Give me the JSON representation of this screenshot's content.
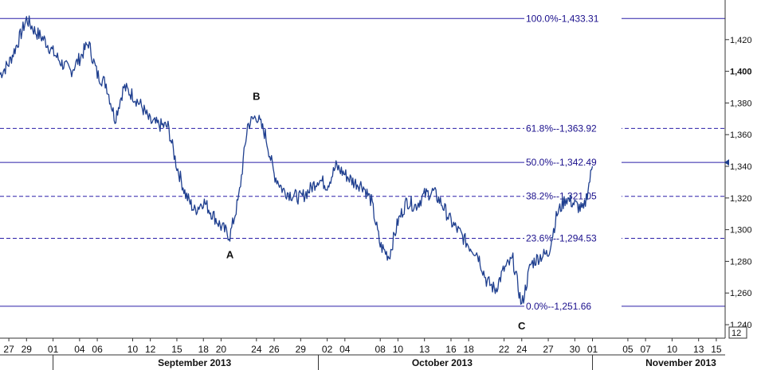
{
  "chart_data": {
    "type": "line",
    "title": "",
    "xlabel": "",
    "ylabel": "",
    "ylim": [
      1235,
      1441
    ],
    "y_ticks": [
      1240,
      1260,
      1280,
      1300,
      1320,
      1340,
      1360,
      1380,
      1400,
      1420
    ],
    "y_tick_labels": [
      "1,240",
      "1,260",
      "1,280",
      "1,300",
      "1,320",
      "1,340",
      "1,360",
      "1,380",
      "1,400",
      "1,420"
    ],
    "y_bold_tick": 1400,
    "x_start": "2013-08-26",
    "x_end": "2013-11-16",
    "x_ticks": [
      {
        "date": "2013-08-27",
        "label": "27"
      },
      {
        "date": "2013-08-29",
        "label": "29"
      },
      {
        "date": "2013-09-01",
        "label": "01"
      },
      {
        "date": "2013-09-04",
        "label": "04"
      },
      {
        "date": "2013-09-06",
        "label": "06"
      },
      {
        "date": "2013-09-10",
        "label": "10"
      },
      {
        "date": "2013-09-12",
        "label": "12"
      },
      {
        "date": "2013-09-15",
        "label": "15"
      },
      {
        "date": "2013-09-18",
        "label": "18"
      },
      {
        "date": "2013-09-20",
        "label": "20"
      },
      {
        "date": "2013-09-24",
        "label": "24"
      },
      {
        "date": "2013-09-26",
        "label": "26"
      },
      {
        "date": "2013-09-29",
        "label": "29"
      },
      {
        "date": "2013-10-02",
        "label": "02"
      },
      {
        "date": "2013-10-04",
        "label": "04"
      },
      {
        "date": "2013-10-08",
        "label": "08"
      },
      {
        "date": "2013-10-10",
        "label": "10"
      },
      {
        "date": "2013-10-13",
        "label": "13"
      },
      {
        "date": "2013-10-16",
        "label": "16"
      },
      {
        "date": "2013-10-18",
        "label": "18"
      },
      {
        "date": "2013-10-22",
        "label": "22"
      },
      {
        "date": "2013-10-24",
        "label": "24"
      },
      {
        "date": "2013-10-27",
        "label": "27"
      },
      {
        "date": "2013-10-30",
        "label": "30"
      },
      {
        "date": "2013-11-01",
        "label": "01"
      },
      {
        "date": "2013-11-05",
        "label": "05"
      },
      {
        "date": "2013-11-07",
        "label": "07"
      },
      {
        "date": "2013-11-10",
        "label": "10"
      },
      {
        "date": "2013-11-13",
        "label": "13"
      },
      {
        "date": "2013-11-15",
        "label": "15"
      }
    ],
    "month_labels": [
      {
        "label": "September 2013",
        "date": "2013-09-17"
      },
      {
        "label": "October 2013",
        "date": "2013-10-15"
      },
      {
        "label": "November 2013",
        "date": "2013-11-11"
      }
    ],
    "month_separators": [
      "2013-09-01",
      "2013-10-01",
      "2013-11-01"
    ],
    "series": [
      {
        "color": "#1f3f8f",
        "points": [
          [
            "2013-08-26",
            1398
          ],
          [
            "2013-08-27",
            1405
          ],
          [
            "2013-08-28",
            1418
          ],
          [
            "2013-08-29",
            1433
          ],
          [
            "2013-08-30",
            1425
          ],
          [
            "2013-08-31",
            1420
          ],
          [
            "2013-09-01",
            1412
          ],
          [
            "2013-09-02",
            1405
          ],
          [
            "2013-09-03",
            1400
          ],
          [
            "2013-09-04",
            1408
          ],
          [
            "2013-09-05",
            1418
          ],
          [
            "2013-09-06",
            1398
          ],
          [
            "2013-09-07",
            1392
          ],
          [
            "2013-09-08",
            1370
          ],
          [
            "2013-09-09",
            1390
          ],
          [
            "2013-09-10",
            1385
          ],
          [
            "2013-09-11",
            1378
          ],
          [
            "2013-09-12",
            1368
          ],
          [
            "2013-09-13",
            1366
          ],
          [
            "2013-09-14",
            1365
          ],
          [
            "2013-09-15",
            1340
          ],
          [
            "2013-09-16",
            1322
          ],
          [
            "2013-09-17",
            1312
          ],
          [
            "2013-09-18",
            1318
          ],
          [
            "2013-09-19",
            1310
          ],
          [
            "2013-09-20",
            1302
          ],
          [
            "2013-09-21",
            1296
          ],
          [
            "2013-09-22",
            1320
          ],
          [
            "2013-09-23",
            1366
          ],
          [
            "2013-09-24",
            1372
          ],
          [
            "2013-09-25",
            1360
          ],
          [
            "2013-09-26",
            1335
          ],
          [
            "2013-09-27",
            1325
          ],
          [
            "2013-09-28",
            1322
          ],
          [
            "2013-09-29",
            1320
          ],
          [
            "2013-09-30",
            1325
          ],
          [
            "2013-10-01",
            1332
          ],
          [
            "2013-10-02",
            1328
          ],
          [
            "2013-10-03",
            1340
          ],
          [
            "2013-10-04",
            1335
          ],
          [
            "2013-10-05",
            1330
          ],
          [
            "2013-10-06",
            1328
          ],
          [
            "2013-10-07",
            1318
          ],
          [
            "2013-10-08",
            1290
          ],
          [
            "2013-10-09",
            1283
          ],
          [
            "2013-10-10",
            1305
          ],
          [
            "2013-10-11",
            1318
          ],
          [
            "2013-10-12",
            1315
          ],
          [
            "2013-10-13",
            1322
          ],
          [
            "2013-10-14",
            1324
          ],
          [
            "2013-10-15",
            1316
          ],
          [
            "2013-10-16",
            1305
          ],
          [
            "2013-10-17",
            1298
          ],
          [
            "2013-10-18",
            1290
          ],
          [
            "2013-10-19",
            1285
          ],
          [
            "2013-10-20",
            1268
          ],
          [
            "2013-10-21",
            1262
          ],
          [
            "2013-10-22",
            1275
          ],
          [
            "2013-10-23",
            1281
          ],
          [
            "2013-10-24",
            1252
          ],
          [
            "2013-10-25",
            1278
          ],
          [
            "2013-10-26",
            1283
          ],
          [
            "2013-10-27",
            1285
          ],
          [
            "2013-10-28",
            1310
          ],
          [
            "2013-10-29",
            1320
          ],
          [
            "2013-10-30",
            1316
          ],
          [
            "2013-10-31",
            1312
          ],
          [
            "2013-11-01",
            1340
          ]
        ]
      }
    ],
    "fib_levels": [
      {
        "pct": "100.0%",
        "value": 1433.31,
        "label": "100.0%-1,433.31",
        "style": "solid"
      },
      {
        "pct": "61.8%",
        "value": 1363.92,
        "label": "61.8%--1,363.92",
        "style": "dashed"
      },
      {
        "pct": "50.0%",
        "value": 1342.49,
        "label": "50.0%--1,342.49",
        "style": "solid"
      },
      {
        "pct": "38.2%",
        "value": 1321.05,
        "label": "38.2%--1,321.05",
        "style": "dashed"
      },
      {
        "pct": "23.6%",
        "value": 1294.53,
        "label": "23.6%--1,294.53",
        "style": "dashed"
      },
      {
        "pct": "0.0%",
        "value": 1251.66,
        "label": "0.0%--1,251.66",
        "style": "solid"
      }
    ],
    "wave_labels": [
      {
        "label": "B",
        "date": "2013-09-24",
        "value": 1382
      },
      {
        "label": "A",
        "date": "2013-09-21",
        "value": 1282
      },
      {
        "label": "C",
        "date": "2013-10-24",
        "value": 1237
      }
    ],
    "current_price_marker": 1342.49,
    "zoom_badge": "12",
    "colors": {
      "price_line": "#1f3f8f",
      "fib_line": "#2a1fa8",
      "fib_text": "#1a0f8c",
      "axis": "#333333"
    }
  }
}
